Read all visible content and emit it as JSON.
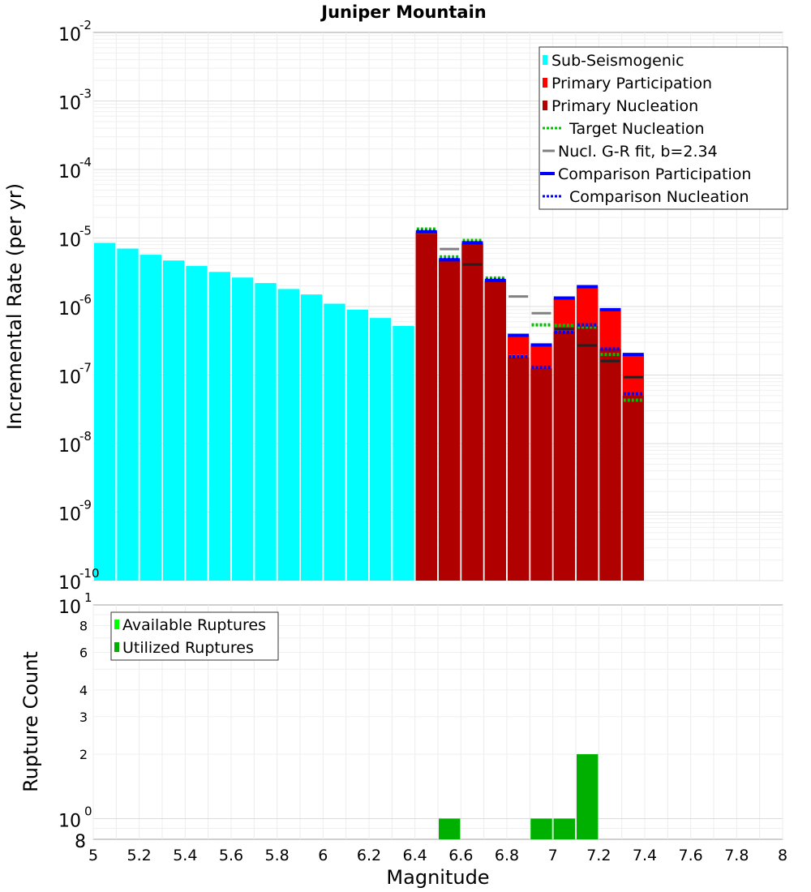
{
  "chart_data": [
    {
      "type": "bar",
      "title": "Juniper Mountain",
      "ylabel": "Incremental Rate (per yr)",
      "xlabel": "",
      "yscale": "log",
      "xlim": [
        5,
        8
      ],
      "ylim": [
        1e-10,
        0.01
      ],
      "ytick_labels": [
        {
          "base": "10",
          "exp": "-10"
        },
        {
          "base": "10",
          "exp": "-9"
        },
        {
          "base": "10",
          "exp": "-8"
        },
        {
          "base": "10",
          "exp": "-7"
        },
        {
          "base": "10",
          "exp": "-6"
        },
        {
          "base": "10",
          "exp": "-5"
        },
        {
          "base": "10",
          "exp": "-4"
        },
        {
          "base": "10",
          "exp": "-3"
        },
        {
          "base": "10",
          "exp": "-2"
        }
      ],
      "legend_position": "top-right",
      "legend": [
        {
          "label": "Sub-Seismogenic",
          "style": "bar",
          "color": "#00ffff"
        },
        {
          "label": "Primary Participation",
          "style": "bar",
          "color": "#ff0000"
        },
        {
          "label": "Primary Nucleation",
          "style": "bar",
          "color": "#b00000"
        },
        {
          "label": "Target Nucleation",
          "style": "dotted",
          "color": "#00c000"
        },
        {
          "label": "Nucl. G-R fit, b=2.34",
          "style": "solid",
          "color": "#808080"
        },
        {
          "label": "Comparison Participation",
          "style": "solid-thick",
          "color": "#0000ff"
        },
        {
          "label": "Comparison Nucleation",
          "style": "dotted",
          "color": "#0000ff"
        }
      ],
      "series": [
        {
          "name": "Sub-Seismogenic",
          "color": "#00ffff",
          "x": [
            5.05,
            5.15,
            5.25,
            5.35,
            5.45,
            5.55,
            5.65,
            5.75,
            5.85,
            5.95,
            6.05,
            6.15,
            6.25,
            6.35
          ],
          "values": [
            8.5e-06,
            7e-06,
            5.7e-06,
            4.7e-06,
            3.9e-06,
            3.2e-06,
            2.65e-06,
            2.2e-06,
            1.8e-06,
            1.5e-06,
            1.1e-06,
            9e-07,
            6.8e-07,
            5.2e-07
          ]
        },
        {
          "name": "Primary Participation",
          "color": "#ff0000",
          "x": [
            6.45,
            6.55,
            6.65,
            6.75,
            6.85,
            6.95,
            7.05,
            7.15,
            7.25,
            7.35
          ],
          "values": [
            1.2e-05,
            4.7e-06,
            8.3e-06,
            2.35e-06,
            3.7e-07,
            2.7e-07,
            1.3e-06,
            1.9e-06,
            8.8e-07,
            1.95e-07
          ]
        },
        {
          "name": "Primary Nucleation",
          "color": "#b00000",
          "x": [
            6.45,
            6.55,
            6.65,
            6.75,
            6.85,
            6.95,
            7.05,
            7.15,
            7.25,
            7.35
          ],
          "values": [
            1.2e-05,
            4.7e-06,
            8.3e-06,
            2.35e-06,
            1.8e-07,
            1.25e-07,
            4.3e-07,
            5.2e-07,
            2.4e-07,
            5e-08
          ]
        },
        {
          "name": "Target Nucleation",
          "color": "#00c000",
          "x": [
            6.45,
            6.55,
            6.65,
            6.75,
            6.85,
            6.95,
            7.05,
            7.15,
            7.25,
            7.35
          ],
          "values": [
            1.35e-05,
            5.3e-06,
            9.2e-06,
            2.6e-06,
            1.9e-07,
            5.4e-07,
            5.3e-07,
            5e-07,
            2e-07,
            4.3e-08
          ]
        },
        {
          "name": "Nucl. G-R fit, b=2.34",
          "color": "#808080",
          "x": [
            6.45,
            6.55,
            6.65,
            6.75,
            6.85,
            6.95,
            7.05,
            7.15,
            7.25,
            7.35
          ],
          "values": [
            1.2e-05,
            6.9e-06,
            4.1e-06,
            2.4e-06,
            1.4e-06,
            8e-07,
            4.7e-07,
            2.7e-07,
            1.6e-07,
            9.3e-08
          ]
        },
        {
          "name": "Comparison Participation",
          "color": "#0000ff",
          "x": [
            6.45,
            6.55,
            6.65,
            6.75,
            6.85,
            6.95,
            7.05,
            7.15,
            7.25,
            7.35
          ],
          "values": [
            1.23e-05,
            4.8e-06,
            8.5e-06,
            2.4e-06,
            3.8e-07,
            2.75e-07,
            1.33e-06,
            1.95e-06,
            9e-07,
            2e-07
          ]
        },
        {
          "name": "Comparison Nucleation",
          "color": "#0000ff",
          "x": [
            6.45,
            6.55,
            6.65,
            6.75,
            6.85,
            6.95,
            7.05,
            7.15,
            7.25,
            7.35
          ],
          "values": [
            1.25e-05,
            4.85e-06,
            8.6e-06,
            2.45e-06,
            1.85e-07,
            1.3e-07,
            4.2e-07,
            5.4e-07,
            2.4e-07,
            5.3e-08
          ]
        }
      ]
    },
    {
      "type": "bar",
      "title": "",
      "ylabel": "Rupture Count",
      "xlabel": "Magnitude",
      "yscale": "log",
      "xlim": [
        5,
        8
      ],
      "ylim": [
        0.8,
        10
      ],
      "x_ticks": [
        "5",
        "5.2",
        "5.4",
        "5.6",
        "5.8",
        "6",
        "6.2",
        "6.4",
        "6.6",
        "6.8",
        "7",
        "7.2",
        "7.4",
        "7.6",
        "7.8",
        "8"
      ],
      "y_minor_ticks": [
        {
          "value": 2,
          "label": "2"
        },
        {
          "value": 3,
          "label": "3"
        },
        {
          "value": 4,
          "label": "4"
        },
        {
          "value": 6,
          "label": "6"
        },
        {
          "value": 8,
          "label": "8"
        }
      ],
      "y_bottom_label": "8",
      "ytick_labels": [
        {
          "value": 1,
          "base": "10",
          "exp": "0"
        },
        {
          "value": 10,
          "base": "10",
          "exp": "1"
        }
      ],
      "legend_position": "top-left",
      "legend": [
        {
          "label": "Available Ruptures",
          "style": "bar",
          "color": "#00ff00"
        },
        {
          "label": "Utilized Ruptures",
          "style": "bar",
          "color": "#00b000"
        }
      ],
      "series": [
        {
          "name": "Available Ruptures",
          "color": "#00ff00",
          "x": [
            6.55,
            6.95,
            7.05,
            7.15
          ],
          "values": [
            1,
            1,
            1,
            2
          ]
        },
        {
          "name": "Utilized Ruptures",
          "color": "#00b000",
          "x": [
            6.55,
            6.95,
            7.05,
            7.15
          ],
          "values": [
            1,
            1,
            1,
            2
          ]
        }
      ]
    }
  ]
}
